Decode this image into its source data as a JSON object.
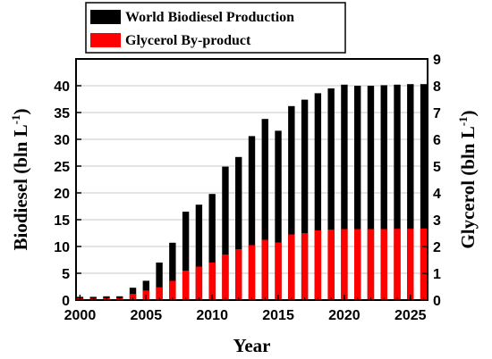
{
  "chart_data": {
    "type": "bar",
    "title": "",
    "xlabel": "Year",
    "ylabel_left": "Biodiesel (bln L",
    "ylabel_left_sup": "-1",
    "ylabel_left_close": ")",
    "ylabel_right": "Glycerol (bln L",
    "ylabel_right_sup": "-1",
    "ylabel_right_close": ")",
    "xlim": [
      1999.7,
      2026.3
    ],
    "ylim_left": [
      0,
      45
    ],
    "ylim_right": [
      0,
      9
    ],
    "grid": true,
    "legend_position": "top-left",
    "x_ticks": [
      2000,
      2005,
      2010,
      2015,
      2020,
      2025
    ],
    "y_ticks_left": [
      0,
      5,
      10,
      15,
      20,
      25,
      30,
      35,
      40
    ],
    "y_ticks_right": [
      0,
      1,
      2,
      3,
      4,
      5,
      6,
      7,
      8,
      9
    ],
    "x_tick_labels": [
      "2000",
      "2005",
      "2010",
      "2015",
      "2020",
      "2025"
    ],
    "y_tick_labels_left": [
      "0",
      "5",
      "10",
      "15",
      "20",
      "25",
      "30",
      "35",
      "40"
    ],
    "y_tick_labels_right": [
      "0",
      "1",
      "2",
      "3",
      "4",
      "5",
      "6",
      "7",
      "8",
      "9"
    ],
    "x": [
      2000,
      2001,
      2002,
      2003,
      2004,
      2005,
      2006,
      2007,
      2008,
      2009,
      2010,
      2011,
      2012,
      2013,
      2014,
      2015,
      2016,
      2017,
      2018,
      2019,
      2020,
      2021,
      2022,
      2023,
      2024,
      2025,
      2026
    ],
    "series": [
      {
        "name": "World Biodiesel Production",
        "axis": "left",
        "color": "#000000",
        "values": [
          0.6,
          0.6,
          0.7,
          0.7,
          2.3,
          3.6,
          7.0,
          10.7,
          16.5,
          17.8,
          19.8,
          24.9,
          26.7,
          30.6,
          33.8,
          31.6,
          36.2,
          37.4,
          38.6,
          39.5,
          40.2,
          40.0,
          40.0,
          40.1,
          40.2,
          40.3,
          40.3
        ]
      },
      {
        "name": "Glycerol By-product",
        "axis": "right",
        "color": "#ff0000",
        "values": [
          0.06,
          0.06,
          0.07,
          0.07,
          0.23,
          0.36,
          0.48,
          0.72,
          1.1,
          1.25,
          1.4,
          1.7,
          1.9,
          2.05,
          2.25,
          2.15,
          2.45,
          2.5,
          2.6,
          2.63,
          2.65,
          2.65,
          2.65,
          2.65,
          2.66,
          2.66,
          2.67
        ]
      }
    ]
  }
}
